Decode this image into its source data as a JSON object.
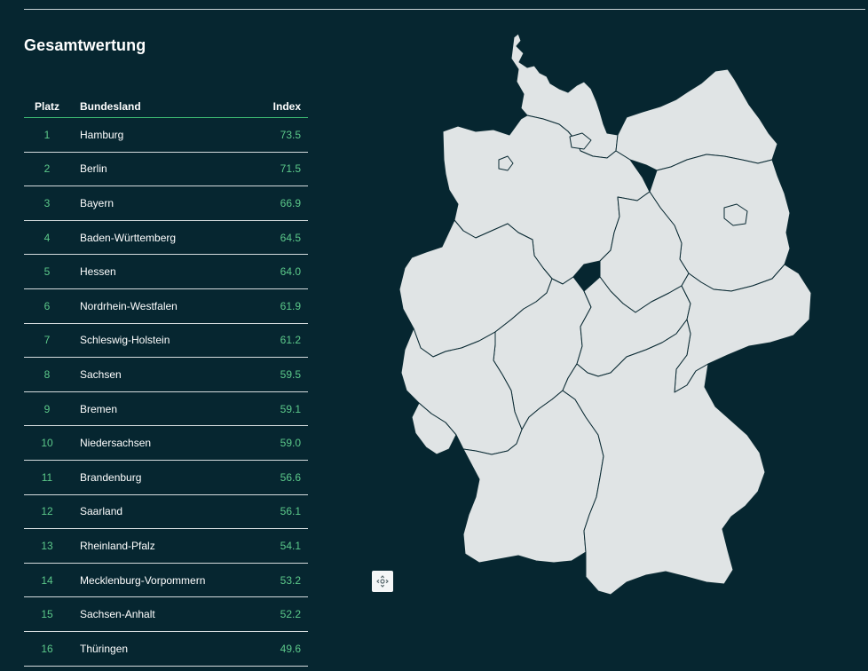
{
  "section": {
    "title": "Gesamtwertung"
  },
  "table": {
    "columns": {
      "rank": "Platz",
      "state": "Bundesland",
      "index": "Index"
    },
    "rows": [
      {
        "rank": "1",
        "state": "Hamburg",
        "index": "73.5"
      },
      {
        "rank": "2",
        "state": "Berlin",
        "index": "71.5"
      },
      {
        "rank": "3",
        "state": "Bayern",
        "index": "66.9"
      },
      {
        "rank": "4",
        "state": "Baden-Württemberg",
        "index": "64.5"
      },
      {
        "rank": "5",
        "state": "Hessen",
        "index": "64.0"
      },
      {
        "rank": "6",
        "state": "Nordrhein-Westfalen",
        "index": "61.9"
      },
      {
        "rank": "7",
        "state": "Schleswig-Holstein",
        "index": "61.2"
      },
      {
        "rank": "8",
        "state": "Sachsen",
        "index": "59.5"
      },
      {
        "rank": "9",
        "state": "Bremen",
        "index": "59.1"
      },
      {
        "rank": "10",
        "state": "Niedersachsen",
        "index": "59.0"
      },
      {
        "rank": "11",
        "state": "Brandenburg",
        "index": "56.6"
      },
      {
        "rank": "12",
        "state": "Saarland",
        "index": "56.1"
      },
      {
        "rank": "13",
        "state": "Rheinland-Pfalz",
        "index": "54.1"
      },
      {
        "rank": "14",
        "state": "Mecklenburg-Vorpommern",
        "index": "53.2"
      },
      {
        "rank": "15",
        "state": "Sachsen-Anhalt",
        "index": "52.2"
      },
      {
        "rank": "16",
        "state": "Thüringen",
        "index": "49.6"
      }
    ]
  },
  "map": {
    "fill_color": "#e0e4e5",
    "border_color": "#0a2a33",
    "reset_icon": "move-arrows-icon"
  },
  "colors": {
    "background": "#062630",
    "accent_green": "#5cc98a",
    "header_rule": "#3fbf75",
    "row_rule": "#d5dcde"
  }
}
